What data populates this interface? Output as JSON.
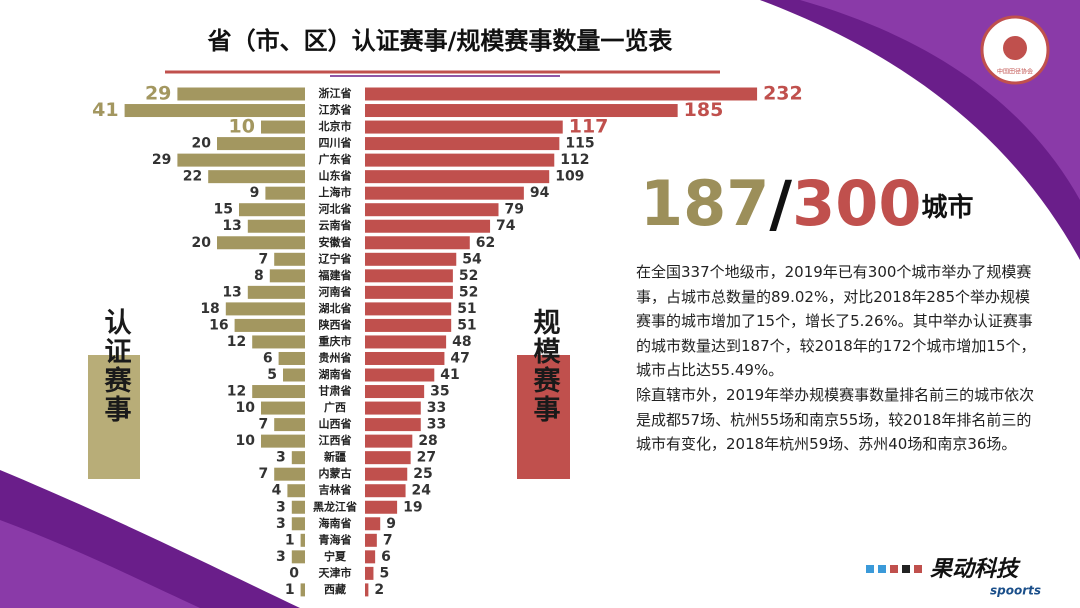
{
  "title": "省（市、区）认证赛事/规模赛事数量一览表",
  "chart_data": {
    "type": "butterfly",
    "categories": [
      "浙江省",
      "江苏省",
      "北京市",
      "四川省",
      "广东省",
      "山东省",
      "上海市",
      "河北省",
      "云南省",
      "安徽省",
      "辽宁省",
      "福建省",
      "河南省",
      "湖北省",
      "陕西省",
      "重庆市",
      "贵州省",
      "湖南省",
      "甘肃省",
      "广西",
      "山西省",
      "江西省",
      "新疆",
      "内蒙古",
      "吉林省",
      "黑龙江省",
      "海南省",
      "青海省",
      "宁夏",
      "天津市",
      "西藏"
    ],
    "series": [
      {
        "name": "认证赛事",
        "color": "#a39760",
        "values": [
          29,
          41,
          10,
          20,
          29,
          22,
          9,
          15,
          13,
          20,
          7,
          8,
          13,
          18,
          16,
          12,
          6,
          5,
          12,
          10,
          7,
          10,
          3,
          7,
          4,
          3,
          3,
          1,
          3,
          0,
          1
        ]
      },
      {
        "name": "规模赛事",
        "color": "#c0504d",
        "values": [
          232,
          185,
          117,
          115,
          112,
          109,
          94,
          79,
          74,
          62,
          54,
          52,
          52,
          51,
          51,
          48,
          47,
          41,
          35,
          33,
          33,
          28,
          27,
          25,
          24,
          19,
          9,
          7,
          6,
          5,
          2
        ]
      }
    ]
  },
  "headline": {
    "certified": "187",
    "slash": "/",
    "total": "300",
    "unit": "城市"
  },
  "paragraphs": [
    "在全国337个地级市，2019年已有300个城市举办了规模赛事，占城市总数量的89.02%，对比2018年285个举办规模赛事的城市增加了15个，增长了5.26%。其中举办认证赛事的城市数量达到187个，较2018年的172个城市增加15个，城市占比达55.49%。",
    "除直辖市外，2019年举办规模赛事数量排名前三的城市依次是成都57场、杭州55场和南京55场，较2018年排名前三的城市有变化，2018年杭州59场、苏州40场和南京36场。"
  ],
  "logo": {
    "name": "果动科技",
    "sub": "spoorts"
  },
  "badge": {
    "text": "中国田径协会"
  }
}
